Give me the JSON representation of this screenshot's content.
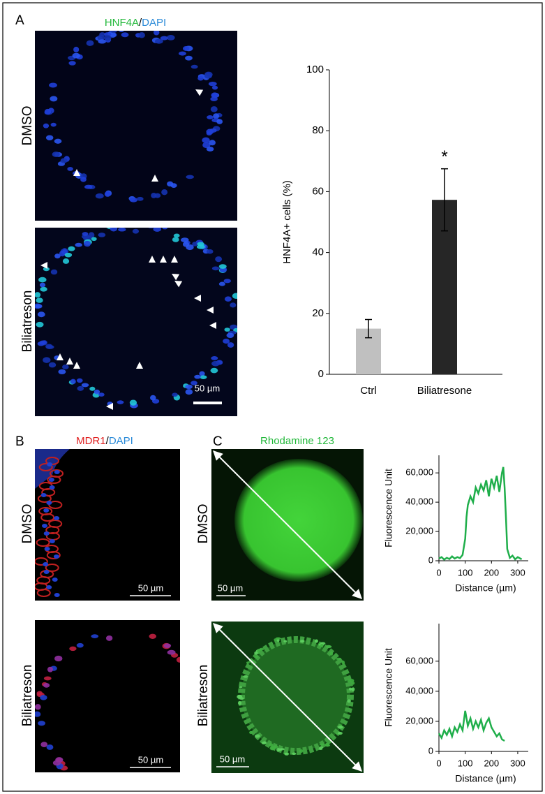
{
  "figure": {
    "panels": [
      {
        "label": "A",
        "stain": {
          "marker": "HNF4A",
          "separator": "/",
          "counterstain": "DAPI"
        },
        "rows": [
          "DMSO",
          "Biliatreson"
        ],
        "scale_bars": [
          "50 µm"
        ]
      },
      {
        "label": "B",
        "stain": {
          "marker": "MDR1",
          "separator": "/",
          "counterstain": "DAPI"
        },
        "rows": [
          "DMSO",
          "Biliatreson"
        ],
        "scale_bars": [
          "50 µm",
          "50 µm"
        ]
      },
      {
        "label": "C",
        "stain": {
          "marker": "Rhodamine 123"
        },
        "rows": [
          "DMSO",
          "Biliatreson"
        ],
        "scale_bars": [
          "50 µm",
          "50 µm"
        ]
      }
    ]
  },
  "chart_data": [
    {
      "type": "bar",
      "categories": [
        "Ctrl",
        "Biliatresone"
      ],
      "values": [
        15,
        57.3
      ],
      "errors": [
        3,
        10.2
      ],
      "colors": [
        "#c0c0c0",
        "#262626"
      ],
      "significance": [
        null,
        "*"
      ],
      "y_label": "HNF4A+ cells (%)",
      "ylim": [
        0,
        100
      ],
      "yticks": [
        0,
        20,
        40,
        60,
        80,
        100
      ]
    },
    {
      "type": "line",
      "y_label": "Fluorescence Unit",
      "x_label": "Distance (µm)",
      "color": "#1fae4a",
      "x": [
        0,
        10,
        20,
        30,
        40,
        50,
        60,
        70,
        80,
        90,
        100,
        105,
        110,
        120,
        130,
        140,
        150,
        160,
        170,
        180,
        190,
        200,
        210,
        220,
        230,
        240,
        245,
        250,
        255,
        260,
        270,
        280,
        290,
        300,
        310,
        315
      ],
      "values": [
        1500,
        2500,
        800,
        2000,
        1200,
        3000,
        1500,
        2500,
        1800,
        4000,
        15000,
        30000,
        38000,
        44000,
        40000,
        50000,
        46000,
        52000,
        48000,
        55000,
        44000,
        56000,
        50000,
        58000,
        47000,
        60000,
        64000,
        50000,
        30000,
        8000,
        2000,
        3500,
        1000,
        2500,
        1500,
        1000
      ],
      "xlim": [
        0,
        340
      ],
      "xticks": [
        0,
        100,
        200,
        300
      ],
      "ylim": [
        0,
        72000
      ],
      "yticks": [
        0,
        {
          "value": 20000,
          "label": "20,000"
        },
        {
          "value": 40000,
          "label": "40,000"
        },
        {
          "value": 60000,
          "label": "60,000"
        }
      ]
    },
    {
      "type": "line",
      "y_label": "Fluorescence Unit",
      "x_label": "Distance (µm)",
      "color": "#1fae4a",
      "x": [
        0,
        10,
        20,
        30,
        40,
        50,
        60,
        70,
        80,
        90,
        100,
        110,
        120,
        130,
        140,
        150,
        160,
        170,
        180,
        190,
        200,
        210,
        220,
        230,
        240,
        250
      ],
      "values": [
        12000,
        9000,
        14000,
        11000,
        15000,
        10000,
        16000,
        13000,
        18000,
        14000,
        27000,
        17000,
        22000,
        15000,
        20000,
        16000,
        21000,
        14000,
        19000,
        22000,
        16000,
        13000,
        10000,
        12000,
        8000,
        7000
      ],
      "xlim": [
        0,
        340
      ],
      "xticks": [
        0,
        100,
        200,
        300
      ],
      "ylim": [
        0,
        85000
      ],
      "yticks": [
        0,
        {
          "value": 20000,
          "label": "20,000"
        },
        {
          "value": 40000,
          "label": "40,000"
        },
        {
          "value": 60000,
          "label": "60,000"
        }
      ]
    }
  ]
}
